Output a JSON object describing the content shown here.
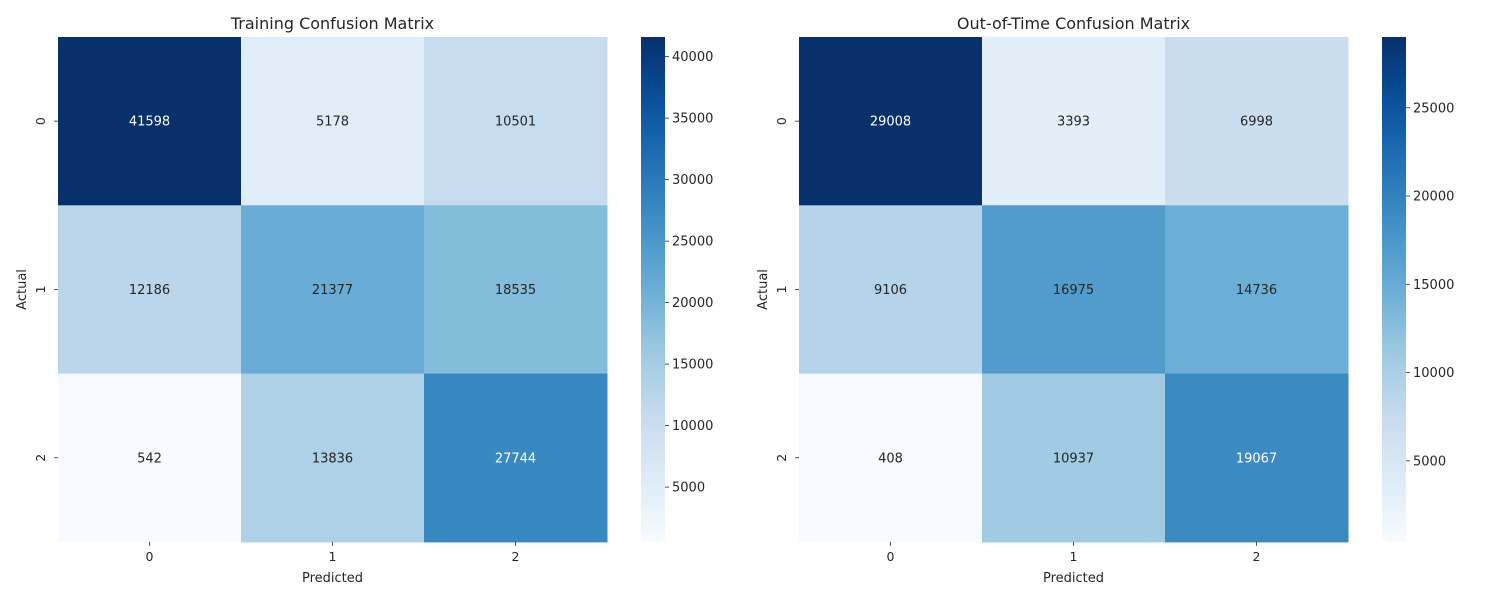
{
  "chart_data": [
    {
      "type": "heatmap",
      "title": "Training Confusion Matrix",
      "xlabel": "Predicted",
      "ylabel": "Actual",
      "x_categories": [
        "0",
        "1",
        "2"
      ],
      "y_categories": [
        "0",
        "1",
        "2"
      ],
      "values": [
        [
          41598,
          5178,
          10501
        ],
        [
          12186,
          21377,
          18535
        ],
        [
          542,
          13836,
          27744
        ]
      ],
      "colormap": "Blues",
      "colorbar": {
        "vmin": 542,
        "vmax": 41598,
        "ticks": [
          5000,
          10000,
          15000,
          20000,
          25000,
          30000,
          35000,
          40000
        ],
        "tick_labels": [
          "5000",
          "10000",
          "15000",
          "20000",
          "25000",
          "30000",
          "35000",
          "40000"
        ]
      }
    },
    {
      "type": "heatmap",
      "title": "Out-of-Time Confusion Matrix",
      "xlabel": "Predicted",
      "ylabel": "Actual",
      "x_categories": [
        "0",
        "1",
        "2"
      ],
      "y_categories": [
        "0",
        "1",
        "2"
      ],
      "values": [
        [
          29008,
          3393,
          6998
        ],
        [
          9106,
          16975,
          14736
        ],
        [
          408,
          10937,
          19067
        ]
      ],
      "colormap": "Blues",
      "colorbar": {
        "vmin": 408,
        "vmax": 29008,
        "ticks": [
          5000,
          10000,
          15000,
          20000,
          25000
        ],
        "tick_labels": [
          "5000",
          "10000",
          "15000",
          "20000",
          "25000"
        ]
      }
    }
  ]
}
